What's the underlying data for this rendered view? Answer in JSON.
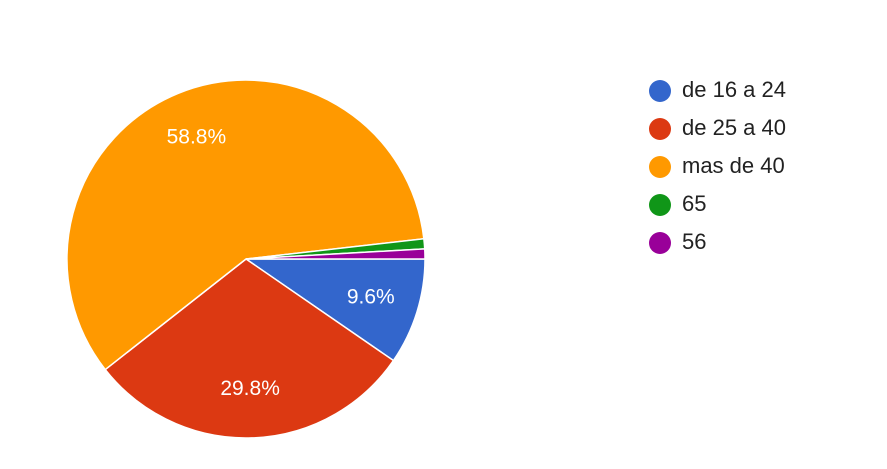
{
  "chart_data": {
    "type": "pie",
    "categories": [
      "de 16 a 24",
      "de 25 a 40",
      "mas de 40",
      "65",
      "56"
    ],
    "values": [
      9.6,
      29.8,
      58.8,
      0.9,
      0.9
    ],
    "value_labels": [
      "9.6%",
      "29.8%",
      "58.8%",
      null,
      null
    ],
    "colors": [
      "#3366cc",
      "#dc3912",
      "#ff9900",
      "#109618",
      "#990099"
    ],
    "legend": "right"
  }
}
